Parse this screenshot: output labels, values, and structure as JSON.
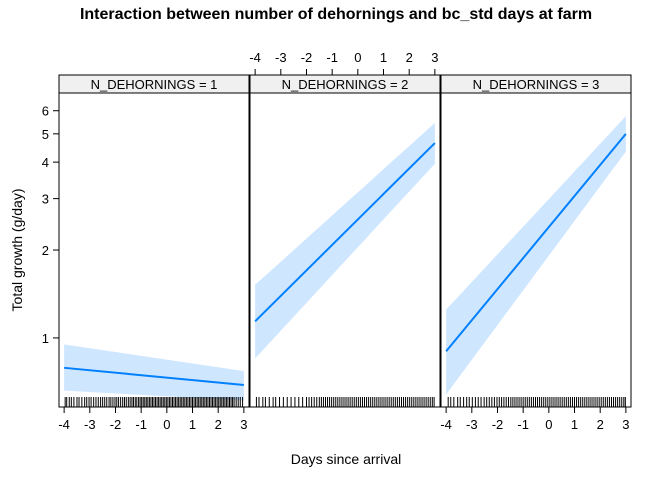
{
  "title": "Interaction between number of dehornings and bc_std days at farm",
  "chart_data": {
    "type": "line",
    "title": "Interaction between number of dehornings and bc_std days at farm",
    "xlabel": "Days since arrival",
    "ylabel": "Total growth (g/day)",
    "xlim": [
      -4.2,
      3.2
    ],
    "ylim": [
      0.58,
      6.9
    ],
    "y_scale": "log",
    "x_ticks": [
      -4,
      -3,
      -2,
      -1,
      0,
      1,
      2,
      3
    ],
    "y_ticks": [
      1,
      2,
      3,
      4,
      5,
      6
    ],
    "grid": false,
    "legend": "none",
    "colors": {
      "line": "#0080ff",
      "band": "#cfe6ff",
      "strip": "#f0f0f0"
    },
    "panels": [
      {
        "strip_label": "N_DEHORNINGS = 1",
        "series": [
          {
            "x": [
              -4.0,
              3.0
            ],
            "y": [
              0.79,
              0.69
            ],
            "lower": [
              0.66,
              0.61
            ],
            "upper": [
              0.95,
              0.77
            ]
          }
        ],
        "rug": [
          -3.96,
          -3.9,
          -3.8,
          -3.72,
          -3.62,
          -3.5,
          -3.42,
          -3.31,
          -3.2,
          -3.12,
          -3.03,
          -2.95,
          -2.85,
          -2.76,
          -2.67,
          -2.58,
          -2.5,
          -2.42,
          -2.34,
          -2.25,
          -2.18,
          -2.1,
          -2.02,
          -1.95,
          -1.88,
          -1.8,
          -1.72,
          -1.65,
          -1.58,
          -1.5,
          -1.43,
          -1.36,
          -1.3,
          -1.23,
          -1.17,
          -1.1,
          -1.04,
          -0.98,
          -0.92,
          -0.86,
          -0.8,
          -0.74,
          -0.68,
          -0.62,
          -0.56,
          -0.5,
          -0.44,
          -0.38,
          -0.32,
          -0.26,
          -0.2,
          -0.14,
          -0.08,
          -0.02,
          0.04,
          0.1,
          0.16,
          0.22,
          0.28,
          0.34,
          0.4,
          0.46,
          0.52,
          0.58,
          0.64,
          0.7,
          0.76,
          0.82,
          0.88,
          0.94,
          1.0,
          1.06,
          1.12,
          1.18,
          1.24,
          1.3,
          1.36,
          1.42,
          1.48,
          1.54,
          1.6,
          1.66,
          1.72,
          1.78,
          1.84,
          1.9,
          1.96,
          2.02,
          2.08,
          2.14,
          2.2,
          2.26,
          2.32,
          2.38,
          2.44,
          2.5,
          2.56,
          2.62,
          2.7,
          2.78,
          2.86,
          2.95
        ]
      },
      {
        "strip_label": "N_DEHORNINGS = 2",
        "series": [
          {
            "x": [
              -4.0,
              3.0
            ],
            "y": [
              1.14,
              4.65
            ],
            "lower": [
              0.85,
              3.95
            ],
            "upper": [
              1.52,
              5.45
            ]
          }
        ],
        "rug": [
          -3.95,
          -3.85,
          -3.7,
          -3.6,
          -3.45,
          -3.3,
          -3.2,
          -3.05,
          -2.9,
          -2.75,
          -2.6,
          -2.45,
          -2.3,
          -2.15,
          -2.0,
          -1.9,
          -1.8,
          -1.7,
          -1.6,
          -1.5,
          -1.42,
          -1.34,
          -1.26,
          -1.18,
          -1.1,
          -1.02,
          -0.94,
          -0.86,
          -0.78,
          -0.7,
          -0.62,
          -0.54,
          -0.46,
          -0.38,
          -0.3,
          -0.22,
          -0.14,
          -0.06,
          0.02,
          0.1,
          0.18,
          0.26,
          0.34,
          0.42,
          0.5,
          0.58,
          0.66,
          0.74,
          0.82,
          0.9,
          0.98,
          1.06,
          1.14,
          1.22,
          1.3,
          1.38,
          1.46,
          1.54,
          1.62,
          1.7,
          1.78,
          1.86,
          1.94,
          2.02,
          2.1,
          2.18,
          2.26,
          2.34,
          2.42,
          2.5,
          2.58,
          2.66,
          2.74,
          2.82,
          2.9,
          2.97
        ]
      },
      {
        "strip_label": "N_DEHORNINGS = 3",
        "series": [
          {
            "x": [
              -4.0,
              3.0
            ],
            "y": [
              0.9,
              5.0
            ],
            "lower": [
              0.64,
              4.35
            ],
            "upper": [
              1.25,
              5.75
            ]
          }
        ],
        "rug": [
          -3.92,
          -3.82,
          -3.7,
          -3.55,
          -3.45,
          -3.32,
          -3.2,
          -3.1,
          -2.98,
          -2.86,
          -2.75,
          -2.64,
          -2.52,
          -2.42,
          -2.32,
          -2.22,
          -2.12,
          -2.02,
          -1.93,
          -1.84,
          -1.75,
          -1.66,
          -1.57,
          -1.48,
          -1.4,
          -1.32,
          -1.24,
          -1.16,
          -1.08,
          -1.0,
          -0.92,
          -0.84,
          -0.76,
          -0.68,
          -0.6,
          -0.52,
          -0.44,
          -0.36,
          -0.28,
          -0.2,
          -0.12,
          -0.04,
          0.04,
          0.12,
          0.2,
          0.28,
          0.36,
          0.44,
          0.52,
          0.6,
          0.68,
          0.76,
          0.84,
          0.92,
          1.0,
          1.08,
          1.16,
          1.24,
          1.32,
          1.4,
          1.48,
          1.56,
          1.64,
          1.72,
          1.8,
          1.88,
          1.96,
          2.04,
          2.12,
          2.2,
          2.28,
          2.36,
          2.44,
          2.52,
          2.6,
          2.68,
          2.76,
          2.84,
          2.92,
          2.98
        ]
      }
    ]
  }
}
